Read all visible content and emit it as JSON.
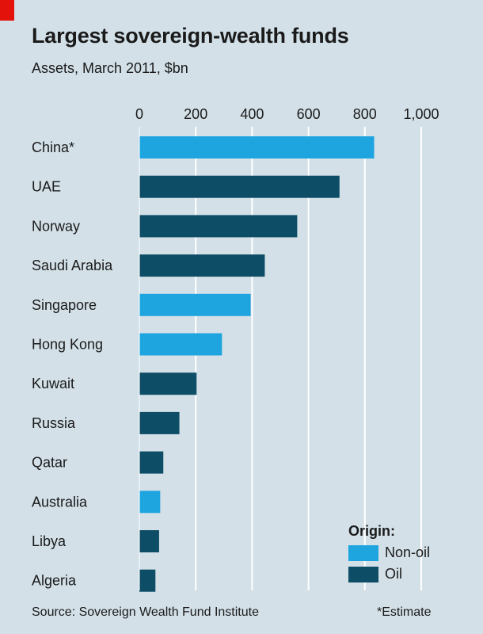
{
  "header": {
    "title": "Largest sovereign-wealth funds",
    "subtitle": "Assets, March 2011, $bn"
  },
  "colors": {
    "non_oil": "#1ea5e0",
    "oil": "#0e4d66",
    "grid": "#ffffff",
    "accent": "#e3120b"
  },
  "chart_data": {
    "type": "bar",
    "orientation": "horizontal",
    "title": "Largest sovereign-wealth funds",
    "subtitle": "Assets, March 2011, $bn",
    "categories": [
      "China*",
      "UAE",
      "Norway",
      "Saudi Arabia",
      "Singapore",
      "Hong Kong",
      "Kuwait",
      "Russia",
      "Qatar",
      "Australia",
      "Libya",
      "Algeria"
    ],
    "values": [
      833,
      710,
      560,
      445,
      395,
      293,
      203,
      142,
      85,
      74,
      70,
      57
    ],
    "origin": [
      "Non-oil",
      "Oil",
      "Oil",
      "Oil",
      "Non-oil",
      "Non-oil",
      "Oil",
      "Oil",
      "Oil",
      "Non-oil",
      "Oil",
      "Oil"
    ],
    "xlim": [
      0,
      1000
    ],
    "ticks": [
      0,
      200,
      400,
      600,
      800,
      1000
    ],
    "tick_labels": [
      "0",
      "200",
      "400",
      "600",
      "800",
      "1,000"
    ],
    "grid": true,
    "legend": {
      "title": "Origin:",
      "position": "bottom-right",
      "entries": [
        {
          "name": "Non-oil",
          "color": "#1ea5e0"
        },
        {
          "name": "Oil",
          "color": "#0e4d66"
        }
      ]
    }
  },
  "footer": {
    "source": "Source: Sovereign Wealth Fund Institute",
    "note": "*Estimate"
  }
}
